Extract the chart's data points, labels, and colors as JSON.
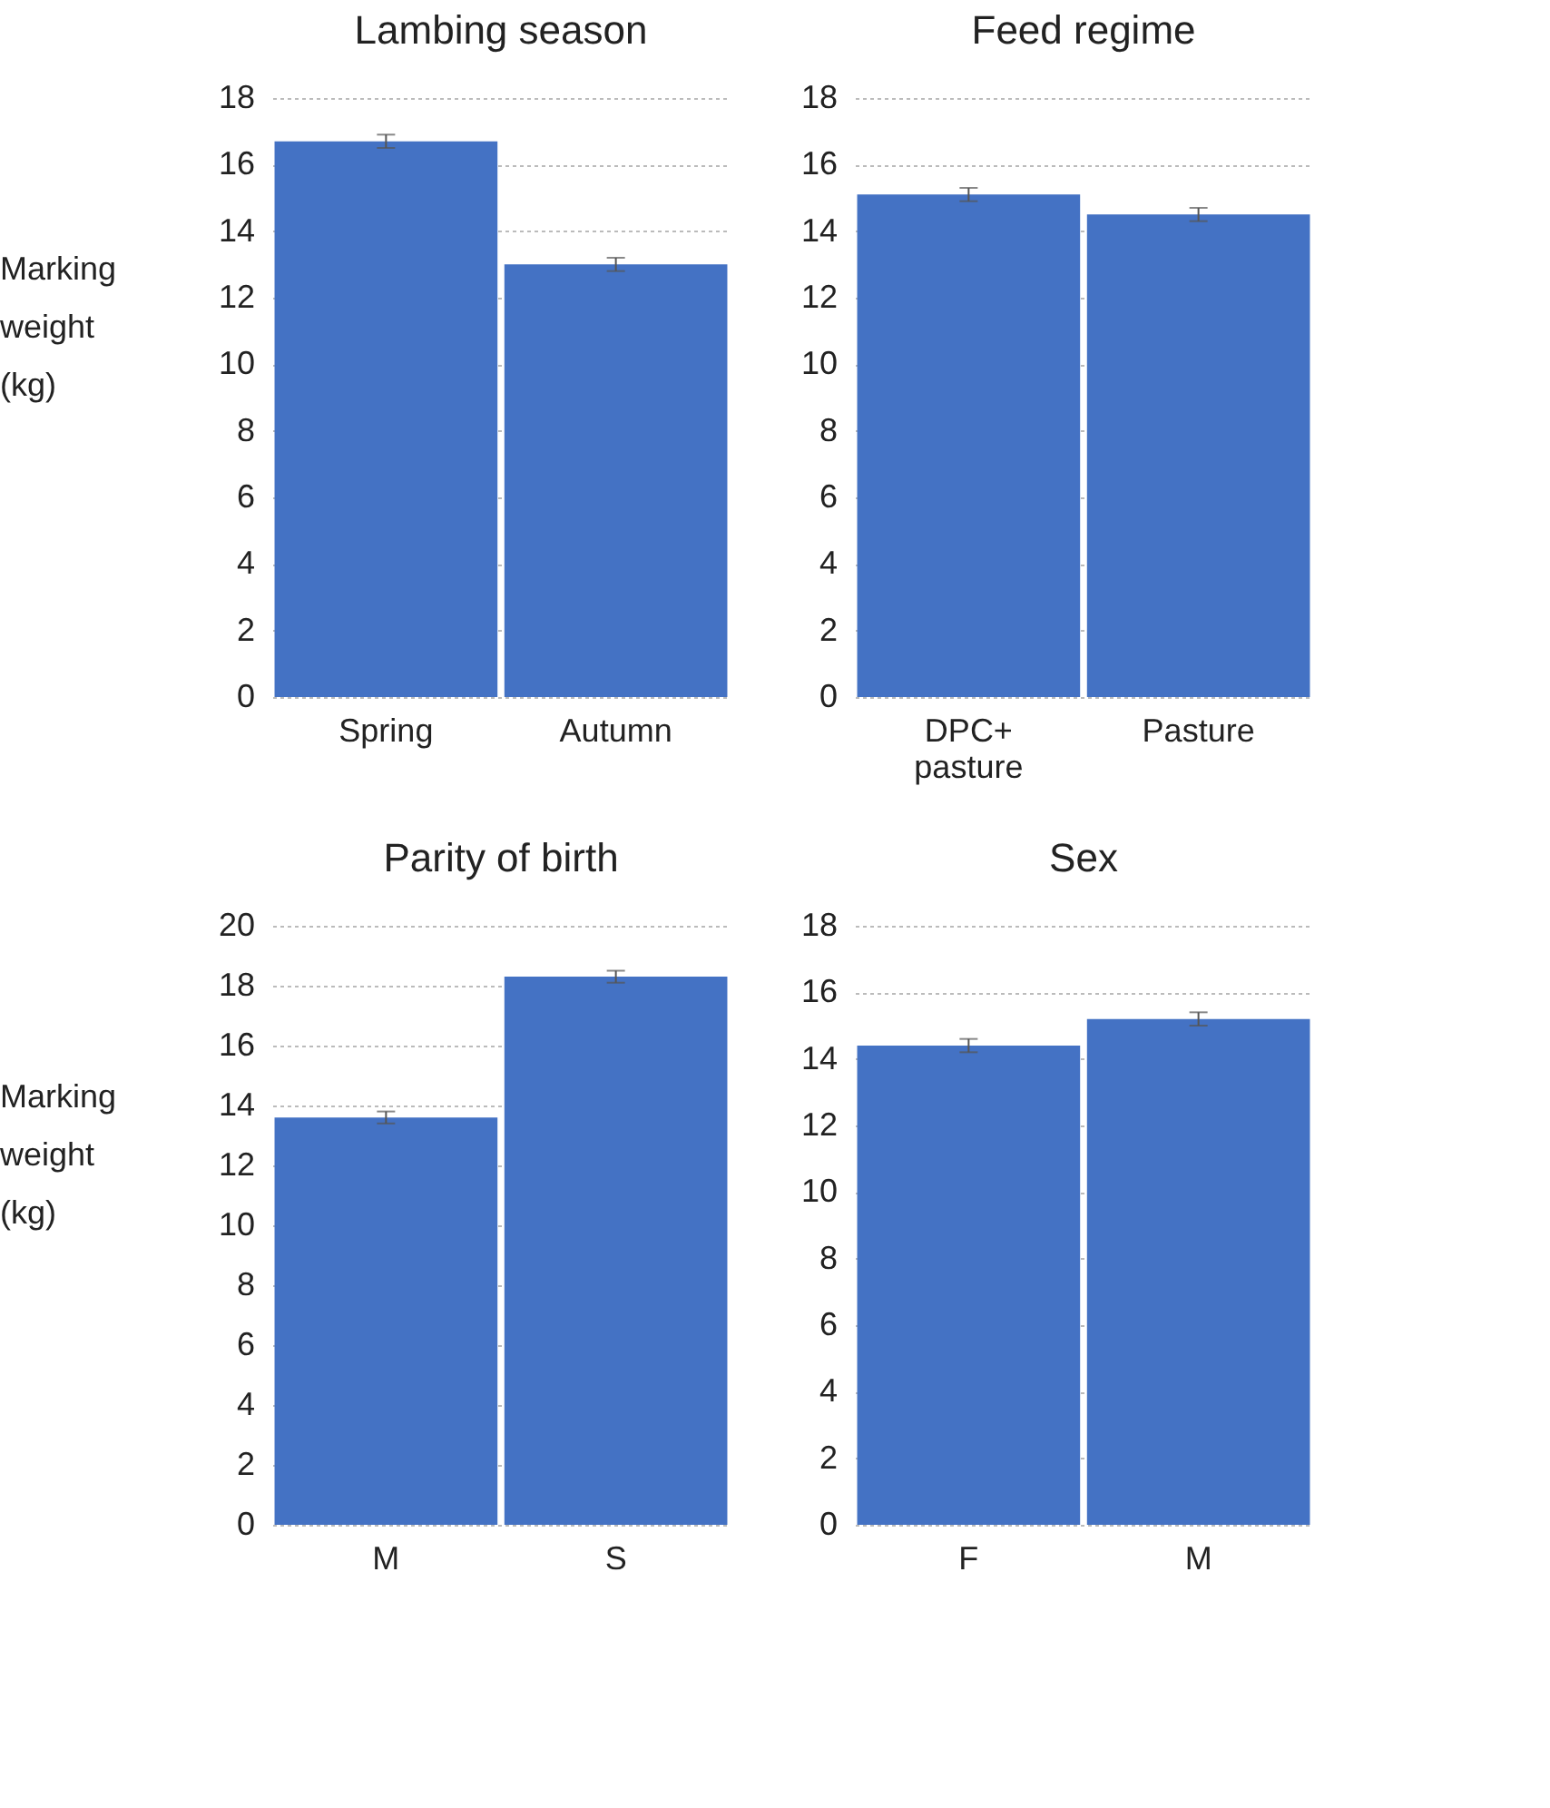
{
  "chart_data": [
    {
      "type": "bar",
      "title": "Lambing season",
      "ylabel": "Marking weight (kg)",
      "categories": [
        "Spring",
        "Autumn"
      ],
      "values": [
        16.7,
        13.0
      ],
      "errors": [
        0.2,
        0.2
      ],
      "color": "#4472c4",
      "ylim": [
        0,
        18
      ],
      "yticks": [
        0,
        2,
        4,
        6,
        8,
        10,
        12,
        14,
        16,
        18
      ],
      "grid": "y"
    },
    {
      "type": "bar",
      "title": "Feed regime",
      "categories": [
        "DPC+ pasture",
        "Pasture"
      ],
      "values": [
        15.1,
        14.5
      ],
      "errors": [
        0.2,
        0.2
      ],
      "color": "#4472c4",
      "ylim": [
        0,
        18
      ],
      "yticks": [
        0,
        2,
        4,
        6,
        8,
        10,
        12,
        14,
        16,
        18
      ],
      "grid": "y"
    },
    {
      "type": "bar",
      "title": "Parity of birth",
      "ylabel": "Marking weight (kg)",
      "categories": [
        "M",
        "S"
      ],
      "values": [
        13.6,
        18.3
      ],
      "errors": [
        0.2,
        0.2
      ],
      "color": "#4472c4",
      "ylim": [
        0,
        20
      ],
      "yticks": [
        0,
        2,
        4,
        6,
        8,
        10,
        12,
        14,
        16,
        18,
        20
      ],
      "grid": "y"
    },
    {
      "type": "bar",
      "title": "Sex",
      "categories": [
        "F",
        "M"
      ],
      "values": [
        14.4,
        15.2
      ],
      "errors": [
        0.2,
        0.2
      ],
      "color": "#4472c4",
      "ylim": [
        0,
        18
      ],
      "yticks": [
        0,
        2,
        4,
        6,
        8,
        10,
        12,
        14,
        16,
        18
      ],
      "grid": "y"
    }
  ]
}
